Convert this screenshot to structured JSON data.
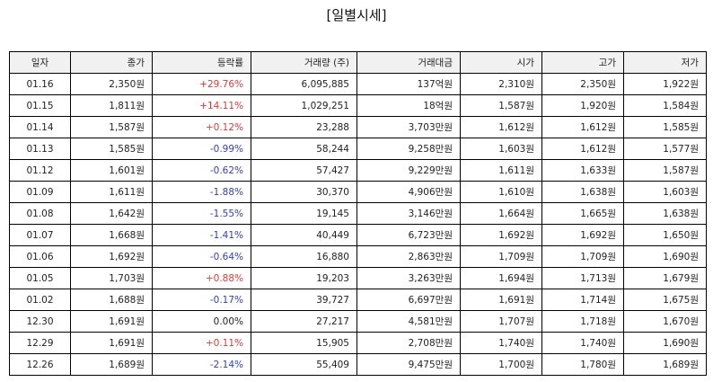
{
  "title": "[일별시세]",
  "colors": {
    "up": "#e03a3a",
    "down": "#3340b8",
    "flat": "#222222"
  },
  "columns": [
    "일자",
    "종가",
    "등락률",
    "거래량 (주)",
    "거래대금",
    "시가",
    "고가",
    "저가"
  ],
  "rows": [
    {
      "date": "01.16",
      "close": "2,350원",
      "change": "+29.76%",
      "dir": "up",
      "volume": "6,095,885",
      "amount": "137억원",
      "open": "2,310원",
      "high": "2,350원",
      "low": "1,922원"
    },
    {
      "date": "01.15",
      "close": "1,811원",
      "change": "+14.11%",
      "dir": "up",
      "volume": "1,029,251",
      "amount": "18억원",
      "open": "1,587원",
      "high": "1,920원",
      "low": "1,584원"
    },
    {
      "date": "01.14",
      "close": "1,587원",
      "change": "+0.12%",
      "dir": "up",
      "volume": "23,288",
      "amount": "3,703만원",
      "open": "1,612원",
      "high": "1,612원",
      "low": "1,585원"
    },
    {
      "date": "01.13",
      "close": "1,585원",
      "change": "-0.99%",
      "dir": "down",
      "volume": "58,244",
      "amount": "9,258만원",
      "open": "1,603원",
      "high": "1,612원",
      "low": "1,577원"
    },
    {
      "date": "01.12",
      "close": "1,601원",
      "change": "-0.62%",
      "dir": "down",
      "volume": "57,427",
      "amount": "9,229만원",
      "open": "1,611원",
      "high": "1,633원",
      "low": "1,587원"
    },
    {
      "date": "01.09",
      "close": "1,611원",
      "change": "-1.88%",
      "dir": "down",
      "volume": "30,370",
      "amount": "4,906만원",
      "open": "1,610원",
      "high": "1,638원",
      "low": "1,603원"
    },
    {
      "date": "01.08",
      "close": "1,642원",
      "change": "-1.55%",
      "dir": "down",
      "volume": "19,145",
      "amount": "3,146만원",
      "open": "1,664원",
      "high": "1,665원",
      "low": "1,638원"
    },
    {
      "date": "01.07",
      "close": "1,668원",
      "change": "-1.41%",
      "dir": "down",
      "volume": "40,449",
      "amount": "6,723만원",
      "open": "1,692원",
      "high": "1,692원",
      "low": "1,650원"
    },
    {
      "date": "01.06",
      "close": "1,692원",
      "change": "-0.64%",
      "dir": "down",
      "volume": "16,880",
      "amount": "2,863만원",
      "open": "1,709원",
      "high": "1,709원",
      "low": "1,690원"
    },
    {
      "date": "01.05",
      "close": "1,703원",
      "change": "+0.88%",
      "dir": "up",
      "volume": "19,203",
      "amount": "3,263만원",
      "open": "1,694원",
      "high": "1,713원",
      "low": "1,679원"
    },
    {
      "date": "01.02",
      "close": "1,688원",
      "change": "-0.17%",
      "dir": "down",
      "volume": "39,727",
      "amount": "6,697만원",
      "open": "1,691원",
      "high": "1,714원",
      "low": "1,675원"
    },
    {
      "date": "12.30",
      "close": "1,691원",
      "change": "0.00%",
      "dir": "flat",
      "volume": "27,217",
      "amount": "4,581만원",
      "open": "1,707원",
      "high": "1,718원",
      "low": "1,670원"
    },
    {
      "date": "12.29",
      "close": "1,691원",
      "change": "+0.11%",
      "dir": "up",
      "volume": "15,905",
      "amount": "2,708만원",
      "open": "1,740원",
      "high": "1,740원",
      "low": "1,690원"
    },
    {
      "date": "12.26",
      "close": "1,689원",
      "change": "-2.14%",
      "dir": "down",
      "volume": "55,409",
      "amount": "9,475만원",
      "open": "1,700원",
      "high": "1,780원",
      "low": "1,689원"
    }
  ]
}
